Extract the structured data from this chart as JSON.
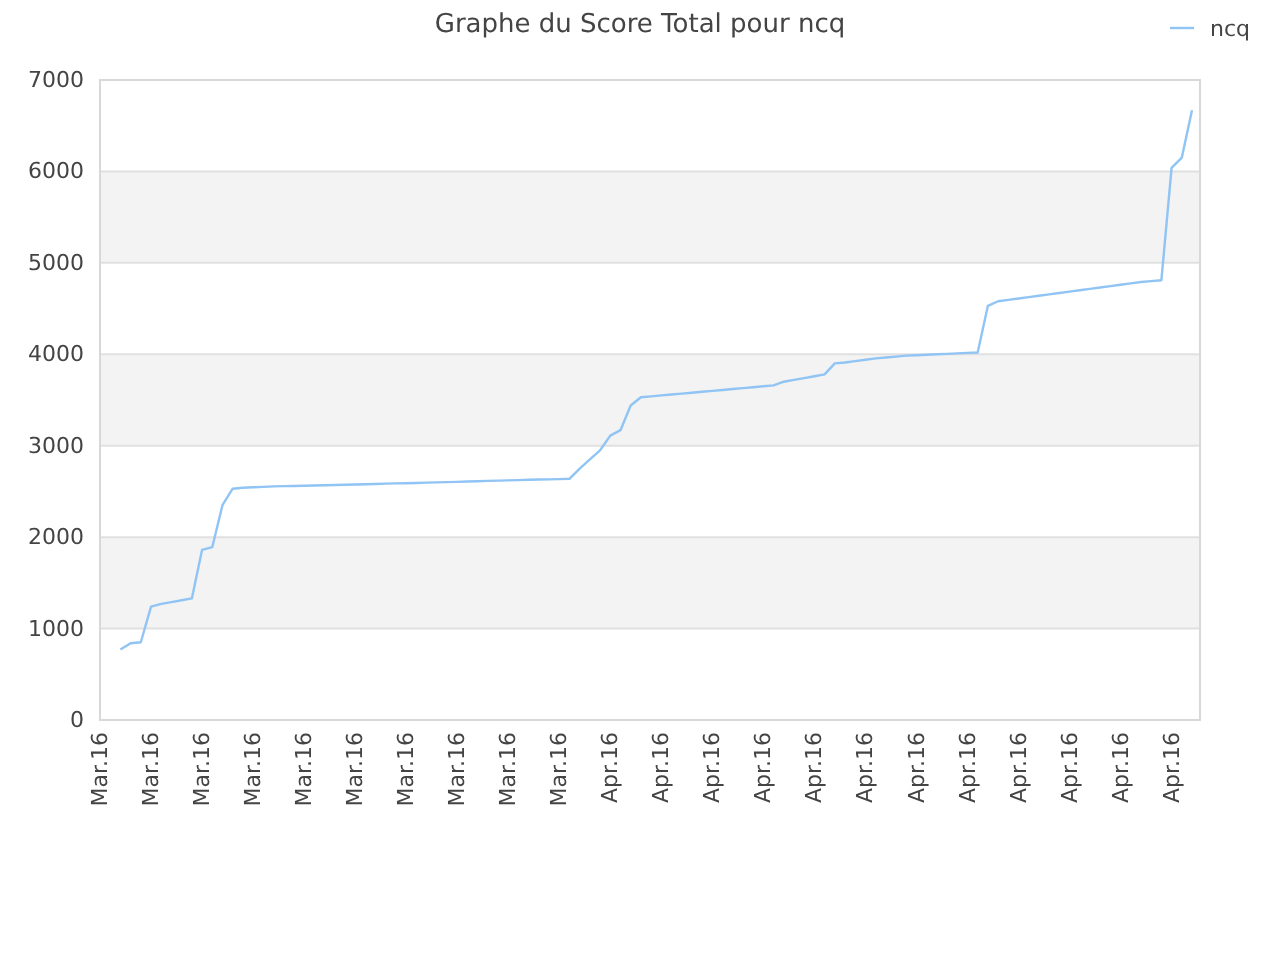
{
  "chart_data": {
    "type": "line",
    "title": "Graphe du Score Total pour ncq",
    "categories": [
      "Mar.16",
      null,
      null,
      null,
      null,
      "Mar.16",
      null,
      null,
      null,
      null,
      "Mar.16",
      null,
      null,
      null,
      null,
      "Mar.16",
      null,
      null,
      null,
      null,
      "Mar.16",
      null,
      null,
      null,
      null,
      "Mar.16",
      null,
      null,
      null,
      null,
      "Mar.16",
      null,
      null,
      null,
      null,
      "Mar.16",
      null,
      null,
      null,
      null,
      "Mar.16",
      null,
      null,
      null,
      null,
      "Mar.16",
      null,
      null,
      null,
      null,
      "Apr.16",
      null,
      null,
      null,
      null,
      "Apr.16",
      null,
      null,
      null,
      null,
      "Apr.16",
      null,
      null,
      null,
      null,
      "Apr.16",
      null,
      null,
      null,
      null,
      "Apr.16",
      null,
      null,
      null,
      null,
      "Apr.16",
      null,
      null,
      null,
      null,
      "Apr.16",
      null,
      null,
      null,
      null,
      "Apr.16",
      null,
      null,
      null,
      null,
      "Apr.16",
      null,
      null,
      null,
      null,
      "Apr.16",
      null,
      null,
      null,
      null,
      "Apr.16",
      null,
      null,
      null,
      null,
      "Apr.16",
      null,
      null
    ],
    "series": [
      {
        "name": "ncq",
        "color": "#90c4f4",
        "values": [
          null,
          null,
          770,
          840,
          850,
          1240,
          1270,
          1290,
          1310,
          1330,
          1860,
          1890,
          2350,
          2530,
          2540,
          2545,
          2550,
          2555,
          2558,
          2560,
          2562,
          2565,
          2568,
          2570,
          2573,
          2576,
          2579,
          2582,
          2585,
          2588,
          2590,
          2593,
          2596,
          2599,
          2602,
          2605,
          2608,
          2612,
          2615,
          2618,
          2621,
          2624,
          2627,
          2630,
          2632,
          2635,
          2638,
          2750,
          2850,
          2950,
          3110,
          3170,
          3440,
          3530,
          3540,
          3550,
          3560,
          3570,
          3580,
          3590,
          3600,
          3610,
          3620,
          3630,
          3640,
          3650,
          3660,
          3700,
          3720,
          3740,
          3760,
          3780,
          3900,
          3910,
          3925,
          3940,
          3955,
          3965,
          3975,
          3985,
          3990,
          3995,
          4000,
          4005,
          4010,
          4015,
          4020,
          4530,
          4580,
          4595,
          4610,
          4625,
          4640,
          4655,
          4670,
          4685,
          4700,
          4715,
          4730,
          4745,
          4760,
          4775,
          4790,
          4800,
          4810,
          6040,
          6150,
          6670
        ]
      }
    ],
    "ylim": [
      0,
      7000
    ],
    "yticks": [
      0,
      1000,
      2000,
      3000,
      4000,
      5000,
      6000,
      7000
    ],
    "grid": "y",
    "legend": "top right",
    "marker": "none",
    "line_style": "solid"
  }
}
